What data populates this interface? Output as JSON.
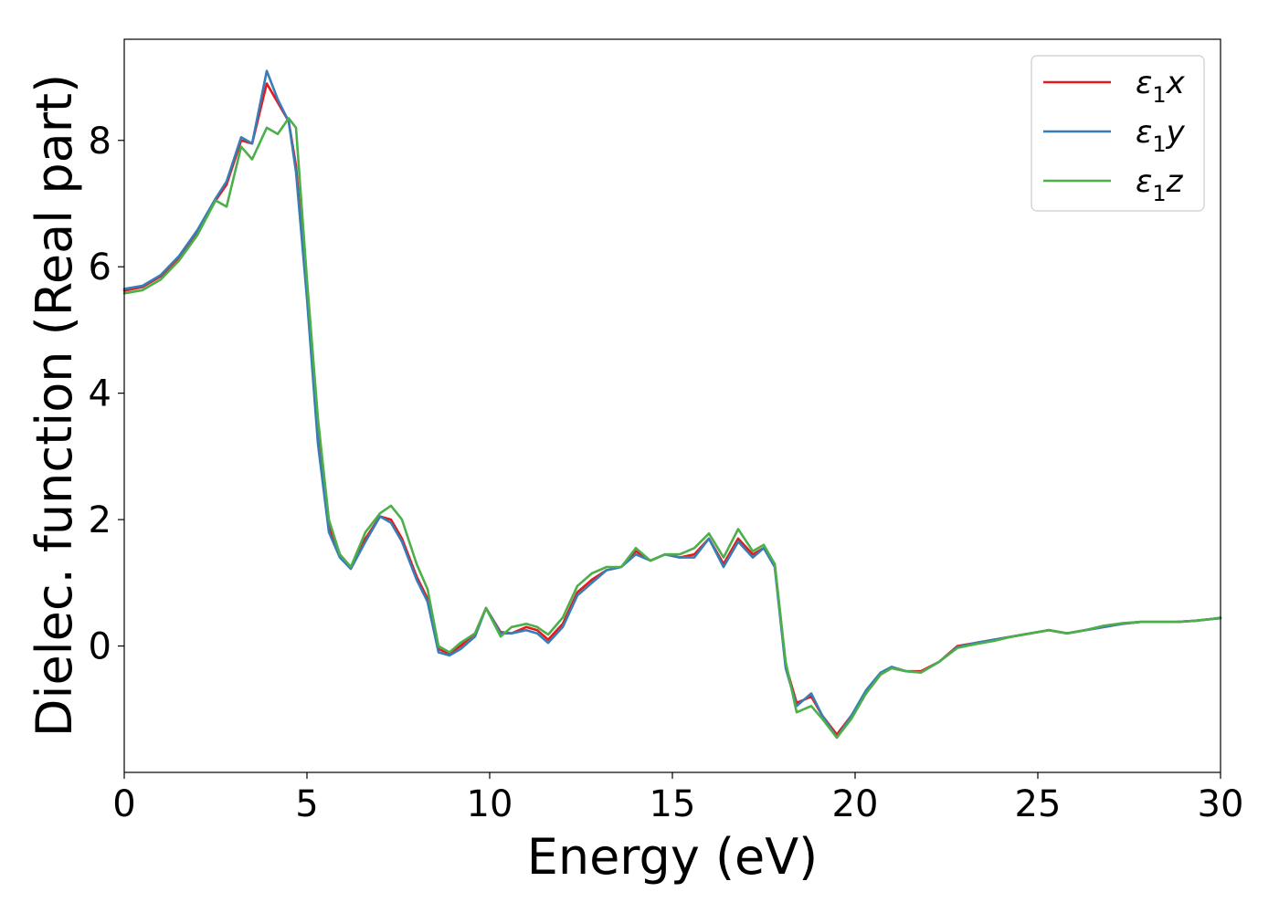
{
  "chart_data": {
    "type": "line",
    "title": "",
    "xlabel": "Energy (eV)",
    "ylabel": "Dielec. function (Real part)",
    "xlim": [
      0,
      30
    ],
    "ylim": [
      -2.0,
      9.6
    ],
    "xticks": [
      0,
      5,
      10,
      15,
      20,
      25,
      30
    ],
    "yticks": [
      0,
      2,
      4,
      6,
      8
    ],
    "grid": false,
    "legend_position": "top-right",
    "x": [
      0,
      0.5,
      1.0,
      1.5,
      2.0,
      2.5,
      2.8,
      3.2,
      3.5,
      3.9,
      4.2,
      4.5,
      4.7,
      5.0,
      5.3,
      5.6,
      5.9,
      6.2,
      6.6,
      7.0,
      7.3,
      7.6,
      8.0,
      8.3,
      8.6,
      8.9,
      9.2,
      9.6,
      9.9,
      10.3,
      10.6,
      11.0,
      11.3,
      11.6,
      12.0,
      12.4,
      12.8,
      13.2,
      13.6,
      14.0,
      14.4,
      14.8,
      15.2,
      15.6,
      16.0,
      16.4,
      16.8,
      17.2,
      17.5,
      17.8,
      18.1,
      18.4,
      18.8,
      19.1,
      19.5,
      19.9,
      20.3,
      20.7,
      21.0,
      21.4,
      21.8,
      22.3,
      22.8,
      23.3,
      23.8,
      24.3,
      24.8,
      25.3,
      25.8,
      26.3,
      26.8,
      27.3,
      27.8,
      28.3,
      28.8,
      29.3,
      29.8,
      30.0
    ],
    "series": [
      {
        "name": "ε1x",
        "color": "#e41a1c",
        "values": [
          5.62,
          5.68,
          5.85,
          6.15,
          6.55,
          7.05,
          7.3,
          8.0,
          7.95,
          8.9,
          8.6,
          8.3,
          7.6,
          5.6,
          3.4,
          1.9,
          1.45,
          1.25,
          1.7,
          2.05,
          2.0,
          1.7,
          1.1,
          0.75,
          -0.05,
          -0.12,
          0.0,
          0.2,
          0.6,
          0.22,
          0.2,
          0.3,
          0.25,
          0.1,
          0.35,
          0.85,
          1.05,
          1.2,
          1.25,
          1.5,
          1.35,
          1.45,
          1.4,
          1.45,
          1.7,
          1.3,
          1.7,
          1.45,
          1.55,
          1.3,
          -0.3,
          -0.9,
          -0.8,
          -1.1,
          -1.4,
          -1.1,
          -0.75,
          -0.45,
          -0.35,
          -0.4,
          -0.4,
          -0.25,
          0.0,
          0.05,
          0.1,
          0.15,
          0.2,
          0.25,
          0.2,
          0.25,
          0.3,
          0.35,
          0.38,
          0.38,
          0.38,
          0.4,
          0.43,
          0.44
        ]
      },
      {
        "name": "ε1y",
        "color": "#377eb8",
        "values": [
          5.65,
          5.7,
          5.87,
          6.17,
          6.58,
          7.08,
          7.35,
          8.05,
          7.95,
          9.1,
          8.65,
          8.3,
          7.5,
          5.5,
          3.2,
          1.8,
          1.4,
          1.22,
          1.65,
          2.05,
          1.95,
          1.65,
          1.05,
          0.7,
          -0.1,
          -0.15,
          -0.05,
          0.15,
          0.6,
          0.2,
          0.2,
          0.25,
          0.2,
          0.05,
          0.3,
          0.8,
          1.0,
          1.2,
          1.25,
          1.45,
          1.35,
          1.45,
          1.4,
          1.4,
          1.7,
          1.25,
          1.65,
          1.4,
          1.55,
          1.25,
          -0.35,
          -0.95,
          -0.75,
          -1.1,
          -1.45,
          -1.1,
          -0.7,
          -0.42,
          -0.33,
          -0.4,
          -0.42,
          -0.25,
          -0.02,
          0.05,
          0.1,
          0.15,
          0.2,
          0.25,
          0.2,
          0.25,
          0.3,
          0.35,
          0.38,
          0.38,
          0.38,
          0.4,
          0.43,
          0.44
        ]
      },
      {
        "name": "ε1z",
        "color": "#4daf4a",
        "values": [
          5.58,
          5.63,
          5.8,
          6.1,
          6.5,
          7.05,
          6.95,
          7.9,
          7.7,
          8.2,
          8.1,
          8.35,
          8.2,
          5.8,
          3.6,
          2.0,
          1.45,
          1.25,
          1.8,
          2.1,
          2.22,
          2.0,
          1.3,
          0.9,
          0.0,
          -0.1,
          0.05,
          0.2,
          0.6,
          0.15,
          0.3,
          0.35,
          0.3,
          0.18,
          0.45,
          0.95,
          1.15,
          1.25,
          1.25,
          1.55,
          1.35,
          1.45,
          1.45,
          1.55,
          1.78,
          1.4,
          1.85,
          1.5,
          1.6,
          1.3,
          -0.25,
          -1.05,
          -0.95,
          -1.15,
          -1.45,
          -1.15,
          -0.75,
          -0.45,
          -0.35,
          -0.4,
          -0.42,
          -0.25,
          -0.03,
          0.03,
          0.08,
          0.15,
          0.2,
          0.25,
          0.2,
          0.25,
          0.32,
          0.36,
          0.38,
          0.38,
          0.38,
          0.4,
          0.43,
          0.45
        ]
      }
    ]
  }
}
